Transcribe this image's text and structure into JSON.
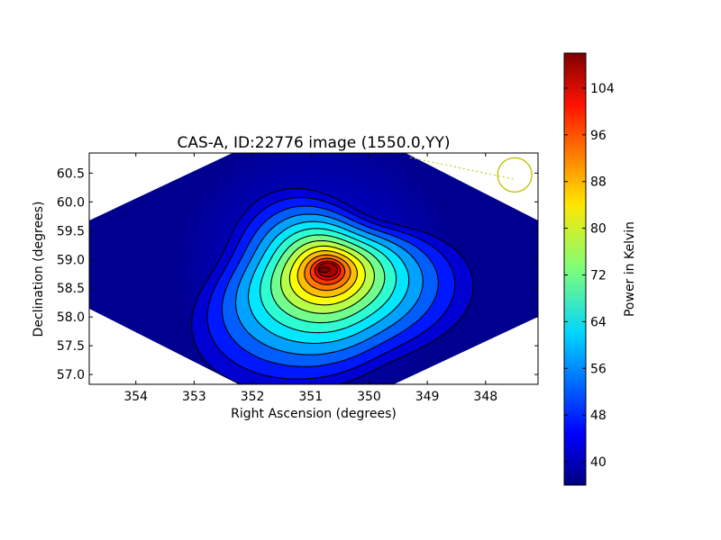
{
  "chart_data": {
    "type": "heatmap",
    "title": "CAS-A, ID:22776 image (1550.0,YY)",
    "xlabel": "Right Ascension (degrees)",
    "ylabel": "Declination (degrees)",
    "xlim": [
      354.8,
      347.1
    ],
    "ylim": [
      56.83,
      60.85
    ],
    "x_ticks": [
      354,
      353,
      352,
      351,
      350,
      349,
      348
    ],
    "y_ticks": [
      57.0,
      57.5,
      58.0,
      58.5,
      59.0,
      59.5,
      60.0,
      60.5
    ],
    "grid": false,
    "colormap": "jet",
    "colorbar": {
      "label": "Power in Kelvin",
      "range": [
        36,
        110
      ],
      "ticks": [
        40,
        48,
        56,
        64,
        72,
        80,
        88,
        96,
        104
      ]
    },
    "peak": {
      "ra": 350.8,
      "dec": 58.82,
      "value": 110
    },
    "background_value": 38,
    "contour_levels": [
      42,
      47,
      52,
      57,
      62,
      67,
      72,
      77,
      82,
      87,
      92,
      97,
      102,
      107
    ],
    "beam_marker": {
      "ra": 347.5,
      "dec": 60.47,
      "color": "#bfbf00"
    },
    "x_tick_labels": [
      "354",
      "353",
      "352",
      "351",
      "350",
      "349",
      "348"
    ],
    "y_tick_labels": [
      "57.0",
      "57.5",
      "58.0",
      "58.5",
      "59.0",
      "59.5",
      "60.0",
      "60.5"
    ],
    "colorbar_tick_labels": [
      "40",
      "48",
      "56",
      "64",
      "72",
      "80",
      "88",
      "96",
      "104"
    ]
  }
}
